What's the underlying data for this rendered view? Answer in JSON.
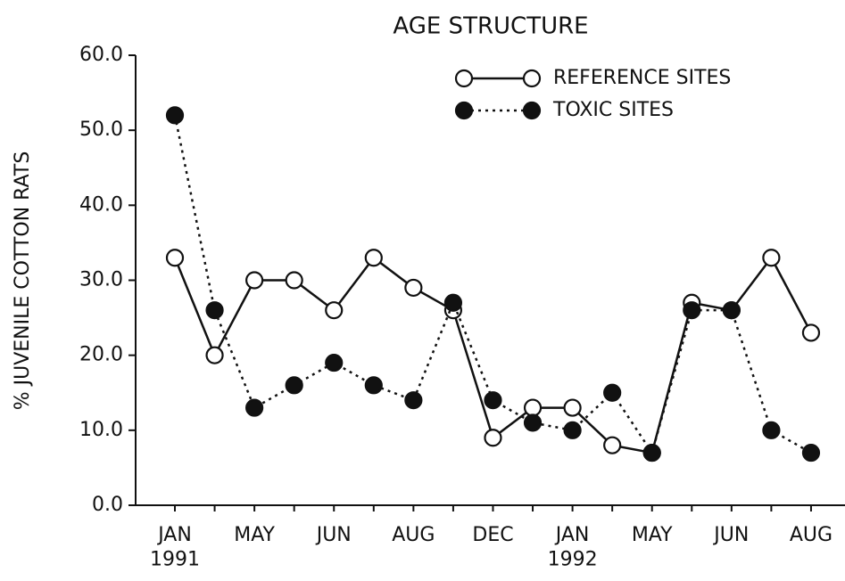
{
  "chart_data": {
    "type": "line",
    "title": "AGE STRUCTURE",
    "y_label": "% JUVENILE COTTON RATS",
    "categories": [
      "JAN 1991",
      null,
      "MAY",
      null,
      "JUN",
      null,
      "AUG",
      null,
      "DEC",
      null,
      "JAN 1992",
      null,
      "MAY",
      null,
      "JUN",
      null,
      "AUG"
    ],
    "series": [
      {
        "name": "REFERENCE SITES",
        "color": "#111111",
        "marker": "open",
        "line": "solid",
        "values": [
          33,
          20,
          30,
          30,
          26,
          33,
          29,
          26,
          9,
          13,
          13,
          8,
          7,
          27,
          26,
          33,
          23
        ]
      },
      {
        "name": "TOXIC SITES",
        "color": "#111111",
        "marker": "filled",
        "line": "dotted",
        "values": [
          52,
          26,
          13,
          16,
          19,
          16,
          14,
          27,
          14,
          11,
          10,
          15,
          7,
          26,
          26,
          10,
          7
        ]
      }
    ],
    "ylim": [
      0,
      60
    ],
    "yticks": [
      {
        "value": 0,
        "label": "0.0"
      },
      {
        "value": 10,
        "label": "10.0"
      },
      {
        "value": 20,
        "label": "20.0"
      },
      {
        "value": 30,
        "label": "30.0"
      },
      {
        "value": 40,
        "label": "40.0"
      },
      {
        "value": 50,
        "label": "50.0"
      },
      {
        "value": 60,
        "label": "60.0"
      }
    ],
    "legend": "top right",
    "grid": false
  }
}
